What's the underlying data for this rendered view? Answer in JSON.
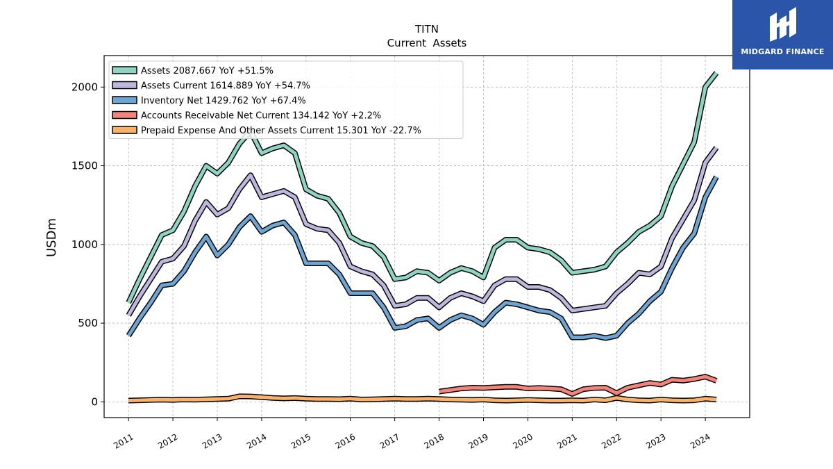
{
  "chart_data": {
    "type": "line",
    "title": "TITN",
    "subtitle": "Current  Assets",
    "xlabel": "",
    "ylabel": "USDm",
    "xlim": [
      2010.45,
      2025.0
    ],
    "ylim": [
      -100,
      2200
    ],
    "yticks": [
      0,
      500,
      1000,
      1500,
      2000
    ],
    "xticks": [
      "2011",
      "2012",
      "2013",
      "2014",
      "2015",
      "2016",
      "2017",
      "2018",
      "2019",
      "2020",
      "2021",
      "2022",
      "2023",
      "2024"
    ],
    "grid": true,
    "legend_position": "top-left",
    "series": [
      {
        "name": "Assets  2087.667 YoY +51.5%",
        "color": "#8fd3c2",
        "x": [
          2011.0,
          2011.25,
          2011.5,
          2011.75,
          2012.0,
          2012.25,
          2012.5,
          2012.75,
          2013.0,
          2013.25,
          2013.5,
          2013.75,
          2014.0,
          2014.25,
          2014.5,
          2014.75,
          2015.0,
          2015.25,
          2015.5,
          2015.75,
          2016.0,
          2016.25,
          2016.5,
          2016.75,
          2017.0,
          2017.25,
          2017.5,
          2017.75,
          2018.0,
          2018.25,
          2018.5,
          2018.75,
          2019.0,
          2019.25,
          2019.5,
          2019.75,
          2020.0,
          2020.25,
          2020.5,
          2020.75,
          2021.0,
          2021.25,
          2021.5,
          2021.75,
          2022.0,
          2022.25,
          2022.5,
          2022.75,
          2023.0,
          2023.25,
          2023.5,
          2023.75,
          2024.0,
          2024.25
        ],
        "values": [
          630,
          780,
          920,
          1060,
          1090,
          1210,
          1370,
          1500,
          1450,
          1520,
          1640,
          1720,
          1580,
          1610,
          1630,
          1580,
          1350,
          1310,
          1290,
          1200,
          1050,
          1010,
          990,
          920,
          780,
          790,
          830,
          820,
          770,
          820,
          850,
          830,
          790,
          980,
          1030,
          1030,
          980,
          970,
          950,
          900,
          820,
          830,
          840,
          860,
          950,
          1010,
          1080,
          1120,
          1180,
          1370,
          1510,
          1650,
          2000,
          2090
        ]
      },
      {
        "name": "Assets Current  1614.889 YoY +54.7%",
        "color": "#bcb7dc",
        "x": [
          2011.0,
          2011.25,
          2011.5,
          2011.75,
          2012.0,
          2012.25,
          2012.5,
          2012.75,
          2013.0,
          2013.25,
          2013.5,
          2013.75,
          2014.0,
          2014.25,
          2014.5,
          2014.75,
          2015.0,
          2015.25,
          2015.5,
          2015.75,
          2016.0,
          2016.25,
          2016.5,
          2016.75,
          2017.0,
          2017.25,
          2017.5,
          2017.75,
          2018.0,
          2018.25,
          2018.5,
          2018.75,
          2019.0,
          2019.25,
          2019.5,
          2019.75,
          2020.0,
          2020.25,
          2020.5,
          2020.75,
          2021.0,
          2021.25,
          2021.5,
          2021.75,
          2022.0,
          2022.25,
          2022.5,
          2022.75,
          2023.0,
          2023.25,
          2023.5,
          2023.75,
          2024.0,
          2024.25
        ],
        "values": [
          550,
          670,
          780,
          890,
          910,
          990,
          1150,
          1270,
          1190,
          1230,
          1350,
          1440,
          1300,
          1320,
          1340,
          1300,
          1130,
          1100,
          1090,
          1010,
          860,
          830,
          810,
          740,
          610,
          620,
          660,
          660,
          600,
          660,
          690,
          670,
          640,
          740,
          780,
          780,
          730,
          730,
          710,
          660,
          580,
          590,
          600,
          610,
          690,
          750,
          820,
          810,
          860,
          1040,
          1160,
          1280,
          1520,
          1615
        ]
      },
      {
        "name": "Inventory Net  1429.762 YoY +67.4%",
        "color": "#6fa5d2",
        "x": [
          2011.0,
          2011.25,
          2011.5,
          2011.75,
          2012.0,
          2012.25,
          2012.5,
          2012.75,
          2013.0,
          2013.25,
          2013.5,
          2013.75,
          2014.0,
          2014.25,
          2014.5,
          2014.75,
          2015.0,
          2015.25,
          2015.5,
          2015.75,
          2016.0,
          2016.25,
          2016.5,
          2016.75,
          2017.0,
          2017.25,
          2017.5,
          2017.75,
          2018.0,
          2018.25,
          2018.5,
          2018.75,
          2019.0,
          2019.25,
          2019.5,
          2019.75,
          2020.0,
          2020.25,
          2020.5,
          2020.75,
          2021.0,
          2021.25,
          2021.5,
          2021.75,
          2022.0,
          2022.25,
          2022.5,
          2022.75,
          2023.0,
          2023.25,
          2023.5,
          2023.75,
          2024.0,
          2024.25
        ],
        "values": [
          420,
          530,
          630,
          740,
          750,
          830,
          950,
          1050,
          930,
          1000,
          1110,
          1180,
          1080,
          1120,
          1140,
          1060,
          880,
          880,
          880,
          810,
          690,
          690,
          690,
          600,
          470,
          480,
          520,
          530,
          470,
          520,
          550,
          530,
          490,
          570,
          630,
          620,
          600,
          580,
          570,
          530,
          410,
          410,
          420,
          405,
          420,
          500,
          560,
          640,
          700,
          850,
          980,
          1070,
          1300,
          1430
        ]
      },
      {
        "name": "Accounts Receivable Net Current  134.142 YoY +2.2%",
        "color": "#f4847a",
        "x": [
          2018.0,
          2018.25,
          2018.5,
          2018.75,
          2019.0,
          2019.25,
          2019.5,
          2019.75,
          2020.0,
          2020.25,
          2020.5,
          2020.75,
          2021.0,
          2021.25,
          2021.5,
          2021.75,
          2022.0,
          2022.25,
          2022.5,
          2022.75,
          2023.0,
          2023.25,
          2023.5,
          2023.75,
          2024.0,
          2024.25
        ],
        "values": [
          65,
          75,
          85,
          90,
          88,
          92,
          95,
          95,
          85,
          88,
          85,
          80,
          50,
          80,
          88,
          90,
          55,
          90,
          105,
          120,
          110,
          140,
          135,
          145,
          160,
          134
        ]
      },
      {
        "name": "Prepaid Expense And Other Assets Current  15.301 YoY -22.7%",
        "color": "#f9b26b",
        "x": [
          2011.0,
          2011.25,
          2011.5,
          2011.75,
          2012.0,
          2012.25,
          2012.5,
          2012.75,
          2013.0,
          2013.25,
          2013.5,
          2013.75,
          2014.0,
          2014.25,
          2014.5,
          2014.75,
          2015.0,
          2015.25,
          2015.5,
          2015.75,
          2016.0,
          2016.25,
          2016.5,
          2016.75,
          2017.0,
          2017.25,
          2017.5,
          2017.75,
          2018.0,
          2018.25,
          2018.5,
          2018.75,
          2019.0,
          2019.25,
          2019.5,
          2019.75,
          2020.0,
          2020.25,
          2020.5,
          2020.75,
          2021.0,
          2021.25,
          2021.5,
          2021.75,
          2022.0,
          2022.25,
          2022.5,
          2022.75,
          2023.0,
          2023.25,
          2023.5,
          2023.75,
          2024.0,
          2024.25
        ],
        "values": [
          8,
          10,
          12,
          14,
          12,
          15,
          14,
          16,
          18,
          20,
          35,
          34,
          30,
          25,
          22,
          24,
          20,
          18,
          18,
          17,
          20,
          15,
          16,
          18,
          20,
          18,
          18,
          20,
          18,
          15,
          14,
          12,
          15,
          10,
          8,
          10,
          12,
          10,
          8,
          8,
          10,
          8,
          15,
          10,
          25,
          15,
          10,
          8,
          15,
          10,
          8,
          10,
          20,
          15
        ]
      }
    ]
  },
  "logo": {
    "text": "MIDGARD FINANCE",
    "icon": "midgard-logo-icon",
    "background": "#2a55a8"
  }
}
